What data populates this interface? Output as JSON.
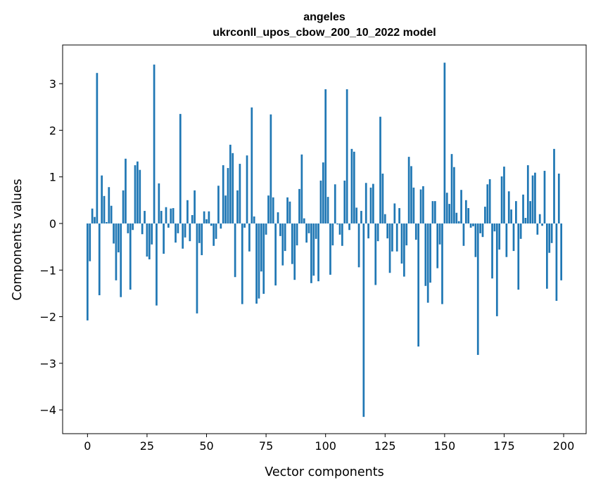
{
  "chart_data": {
    "type": "bar",
    "title": "angeles",
    "subtitle": "ukrconll_upos_cbow_200_10_2022 model",
    "xlabel": "Vector components",
    "ylabel": "Components values",
    "xlim": [
      -10.45,
      209.45
    ],
    "ylim": [
      -4.51,
      3.83
    ],
    "xticks": [
      0,
      25,
      50,
      75,
      100,
      125,
      150,
      175,
      200
    ],
    "xtick_labels": [
      "0",
      "25",
      "50",
      "75",
      "100",
      "125",
      "150",
      "175",
      "200"
    ],
    "yticks": [
      3,
      2,
      1,
      0,
      -1,
      -2,
      -3,
      -4
    ],
    "ytick_labels": [
      "3",
      "2",
      "1",
      "0",
      "−1",
      "−2",
      "−3",
      "−4"
    ],
    "grid": false,
    "bar_color": "#1f77b4",
    "values": [
      -2.08,
      -0.81,
      0.32,
      0.14,
      3.23,
      -1.54,
      1.03,
      0.59,
      0.03,
      0.78,
      0.38,
      -0.43,
      -1.22,
      -0.62,
      -1.58,
      0.71,
      1.39,
      -0.21,
      -1.42,
      -0.14,
      1.25,
      1.33,
      1.15,
      -0.23,
      0.27,
      -0.71,
      -0.77,
      -0.45,
      3.41,
      -1.76,
      0.86,
      0.27,
      -0.65,
      0.35,
      -0.09,
      0.32,
      0.33,
      -0.41,
      -0.21,
      2.35,
      -0.54,
      -0.3,
      0.5,
      -0.38,
      0.18,
      0.71,
      -1.93,
      -0.42,
      -0.68,
      0.26,
      0.09,
      0.26,
      -0.05,
      -0.48,
      -0.33,
      0.81,
      -0.11,
      1.25,
      0.6,
      1.19,
      1.69,
      1.51,
      -1.15,
      0.71,
      1.28,
      -1.73,
      -0.09,
      1.46,
      -0.6,
      2.49,
      0.15,
      -1.72,
      -1.61,
      -1.03,
      -1.51,
      -0.24,
      0.6,
      2.34,
      0.56,
      -1.33,
      0.24,
      -0.27,
      -0.9,
      -0.59,
      0.56,
      0.47,
      -0.87,
      -1.21,
      -0.47,
      0.74,
      1.48,
      0.11,
      -0.41,
      -0.21,
      -1.28,
      -1.12,
      -0.33,
      -1.24,
      0.92,
      1.31,
      2.88,
      0.57,
      -1.1,
      -0.47,
      0.84,
      -0.02,
      -0.24,
      -0.48,
      0.92,
      2.88,
      -0.14,
      1.6,
      1.54,
      0.34,
      -0.94,
      0.27,
      -4.15,
      0.87,
      -0.32,
      0.77,
      0.85,
      -1.32,
      -0.38,
      2.29,
      1.07,
      0.2,
      -0.32,
      -1.06,
      -0.6,
      0.43,
      -0.6,
      0.33,
      -0.86,
      -1.14,
      -0.47,
      1.43,
      1.23,
      0.77,
      -0.35,
      -2.64,
      0.73,
      0.8,
      -1.34,
      -1.7,
      -1.27,
      0.48,
      0.48,
      -0.96,
      -0.45,
      -1.73,
      3.45,
      0.66,
      0.42,
      1.49,
      1.21,
      0.23,
      0.05,
      0.72,
      -0.48,
      0.5,
      0.33,
      -0.09,
      -0.06,
      -0.72,
      -2.82,
      -0.21,
      -0.29,
      0.36,
      0.84,
      0.95,
      -1.18,
      -0.17,
      -1.99,
      -0.56,
      1.01,
      1.22,
      -0.72,
      0.69,
      0.3,
      -0.59,
      0.48,
      -1.42,
      -0.33,
      0.62,
      0.12,
      1.25,
      0.48,
      1.03,
      1.09,
      -0.24,
      0.2,
      -0.05,
      1.13,
      -1.4,
      -0.63,
      -0.42,
      1.6,
      -1.66,
      1.07,
      -1.22
    ]
  }
}
